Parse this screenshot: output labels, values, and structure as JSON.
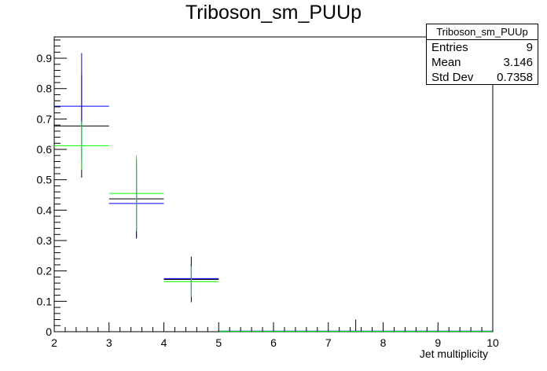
{
  "chart_data": {
    "type": "histogram",
    "title": "Triboson_sm_PUUp",
    "xlabel": "Jet multiplicity",
    "ylabel": "",
    "xlim": [
      2,
      10
    ],
    "ylim": [
      0,
      0.97
    ],
    "x_ticks": [
      "2",
      "3",
      "4",
      "5",
      "6",
      "7",
      "8",
      "9",
      "10"
    ],
    "y_ticks": [
      "0",
      "0.1",
      "0.2",
      "0.3",
      "0.4",
      "0.5",
      "0.6",
      "0.7",
      "0.8",
      "0.9"
    ],
    "grid": false,
    "legend": "none",
    "stats": {
      "name": "Triboson_sm_PUUp",
      "entries_label": "Entries",
      "entries": "9",
      "mean_label": "Mean",
      "mean": "3.146",
      "std_label": "Std Dev",
      "std": "0.7358"
    },
    "series": [
      {
        "color": "#000000",
        "bins": [
          {
            "x0": 2,
            "x1": 3,
            "y": 0.677,
            "err": 0.17
          },
          {
            "x0": 3,
            "x1": 4,
            "y": 0.437,
            "err": 0.13
          },
          {
            "x0": 4,
            "x1": 5,
            "y": 0.172,
            "err": 0.075
          },
          {
            "x0": 5,
            "x1": 6,
            "y": 0.0,
            "err": 0.0
          },
          {
            "x0": 6,
            "x1": 7,
            "y": 0.0,
            "err": 0.0
          },
          {
            "x0": 7,
            "x1": 8,
            "y": 0.0,
            "err": 0.04
          },
          {
            "x0": 8,
            "x1": 9,
            "y": 0.0,
            "err": 0.0
          },
          {
            "x0": 9,
            "x1": 10,
            "y": 0.0,
            "err": 0.0
          }
        ]
      },
      {
        "color": "#0000ff",
        "bins": [
          {
            "x0": 2,
            "x1": 3,
            "y": 0.742,
            "err": 0.175
          },
          {
            "x0": 3,
            "x1": 4,
            "y": 0.422,
            "err": 0.115
          },
          {
            "x0": 4,
            "x1": 5,
            "y": 0.175,
            "err": 0.05
          },
          {
            "x0": 5,
            "x1": 6,
            "y": 0.002,
            "err": 0.0
          },
          {
            "x0": 6,
            "x1": 7,
            "y": 0.002,
            "err": 0.0
          },
          {
            "x0": 7,
            "x1": 8,
            "y": 0.002,
            "err": 0.0
          },
          {
            "x0": 8,
            "x1": 9,
            "y": 0.002,
            "err": 0.0
          },
          {
            "x0": 9,
            "x1": 10,
            "y": 0.002,
            "err": 0.0
          }
        ]
      },
      {
        "color": "#00ff00",
        "bins": [
          {
            "x0": 2,
            "x1": 3,
            "y": 0.612,
            "err": 0.08
          },
          {
            "x0": 3,
            "x1": 4,
            "y": 0.455,
            "err": 0.125
          },
          {
            "x0": 4,
            "x1": 5,
            "y": 0.165,
            "err": 0.05
          },
          {
            "x0": 5,
            "x1": 6,
            "y": 0.001,
            "err": 0.0
          },
          {
            "x0": 6,
            "x1": 7,
            "y": 0.001,
            "err": 0.0
          },
          {
            "x0": 7,
            "x1": 8,
            "y": 0.001,
            "err": 0.0
          },
          {
            "x0": 8,
            "x1": 9,
            "y": 0.001,
            "err": 0.0
          },
          {
            "x0": 9,
            "x1": 10,
            "y": 0.001,
            "err": 0.0
          }
        ]
      }
    ]
  }
}
